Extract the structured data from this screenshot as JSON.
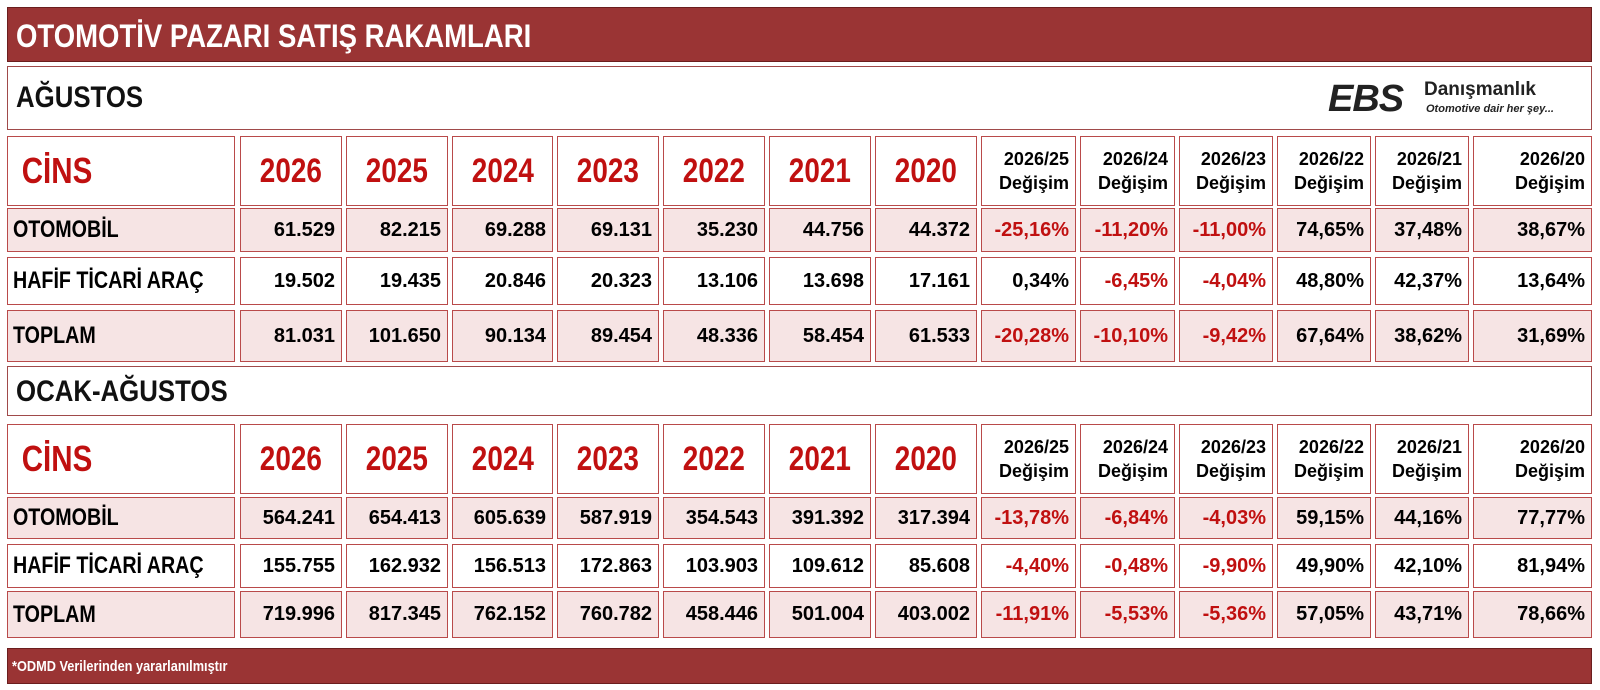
{
  "title": "OTOMOTİV PAZARI SATIŞ RAKAMLARI",
  "logo": {
    "mark": "EBS",
    "brand": "Danışmanlık",
    "slogan": "Otomotive dair her şey..."
  },
  "footer": "*ODMD Verilerinden yararlanılmıştır",
  "header": {
    "label": "CİNS",
    "years": [
      "2026",
      "2025",
      "2024",
      "2023",
      "2022",
      "2021",
      "2020"
    ],
    "changes": [
      {
        "period": "2026/25",
        "word": "Değişim"
      },
      {
        "period": "2026/24",
        "word": "Değişim"
      },
      {
        "period": "2026/23",
        "word": "Değişim"
      },
      {
        "period": "2026/22",
        "word": "Değişim"
      },
      {
        "period": "2026/21",
        "word": "Değişim"
      },
      {
        "period": "2026/20",
        "word": "Değişim"
      }
    ]
  },
  "sections": [
    {
      "title": "AĞUSTOS",
      "rows": [
        {
          "label": "OTOMOBİL",
          "values": [
            "61.529",
            "82.215",
            "69.288",
            "69.131",
            "35.230",
            "44.756",
            "44.372"
          ],
          "changes": [
            "-25,16%",
            "-11,20%",
            "-11,00%",
            "74,65%",
            "37,48%",
            "38,67%"
          ]
        },
        {
          "label": "HAFİF TİCARİ ARAÇ",
          "values": [
            "19.502",
            "19.435",
            "20.846",
            "20.323",
            "13.106",
            "13.698",
            "17.161"
          ],
          "changes": [
            "0,34%",
            "-6,45%",
            "-4,04%",
            "48,80%",
            "42,37%",
            "13,64%"
          ]
        },
        {
          "label": "TOPLAM",
          "values": [
            "81.031",
            "101.650",
            "90.134",
            "89.454",
            "48.336",
            "58.454",
            "61.533"
          ],
          "changes": [
            "-20,28%",
            "-10,10%",
            "-9,42%",
            "67,64%",
            "38,62%",
            "31,69%"
          ]
        }
      ]
    },
    {
      "title": "OCAK-AĞUSTOS",
      "rows": [
        {
          "label": "OTOMOBİL",
          "values": [
            "564.241",
            "654.413",
            "605.639",
            "587.919",
            "354.543",
            "391.392",
            "317.394"
          ],
          "changes": [
            "-13,78%",
            "-6,84%",
            "-4,03%",
            "59,15%",
            "44,16%",
            "77,77%"
          ]
        },
        {
          "label": "HAFİF TİCARİ ARAÇ",
          "values": [
            "155.755",
            "162.932",
            "156.513",
            "172.863",
            "103.903",
            "109.612",
            "85.608"
          ],
          "changes": [
            "-4,40%",
            "-0,48%",
            "-9,90%",
            "49,90%",
            "42,10%",
            "81,94%"
          ]
        },
        {
          "label": "TOPLAM",
          "values": [
            "719.996",
            "817.345",
            "762.152",
            "760.782",
            "458.446",
            "501.004",
            "403.002"
          ],
          "changes": [
            "-11,91%",
            "-5,53%",
            "-5,36%",
            "57,05%",
            "43,71%",
            "78,66%"
          ]
        }
      ]
    }
  ]
}
